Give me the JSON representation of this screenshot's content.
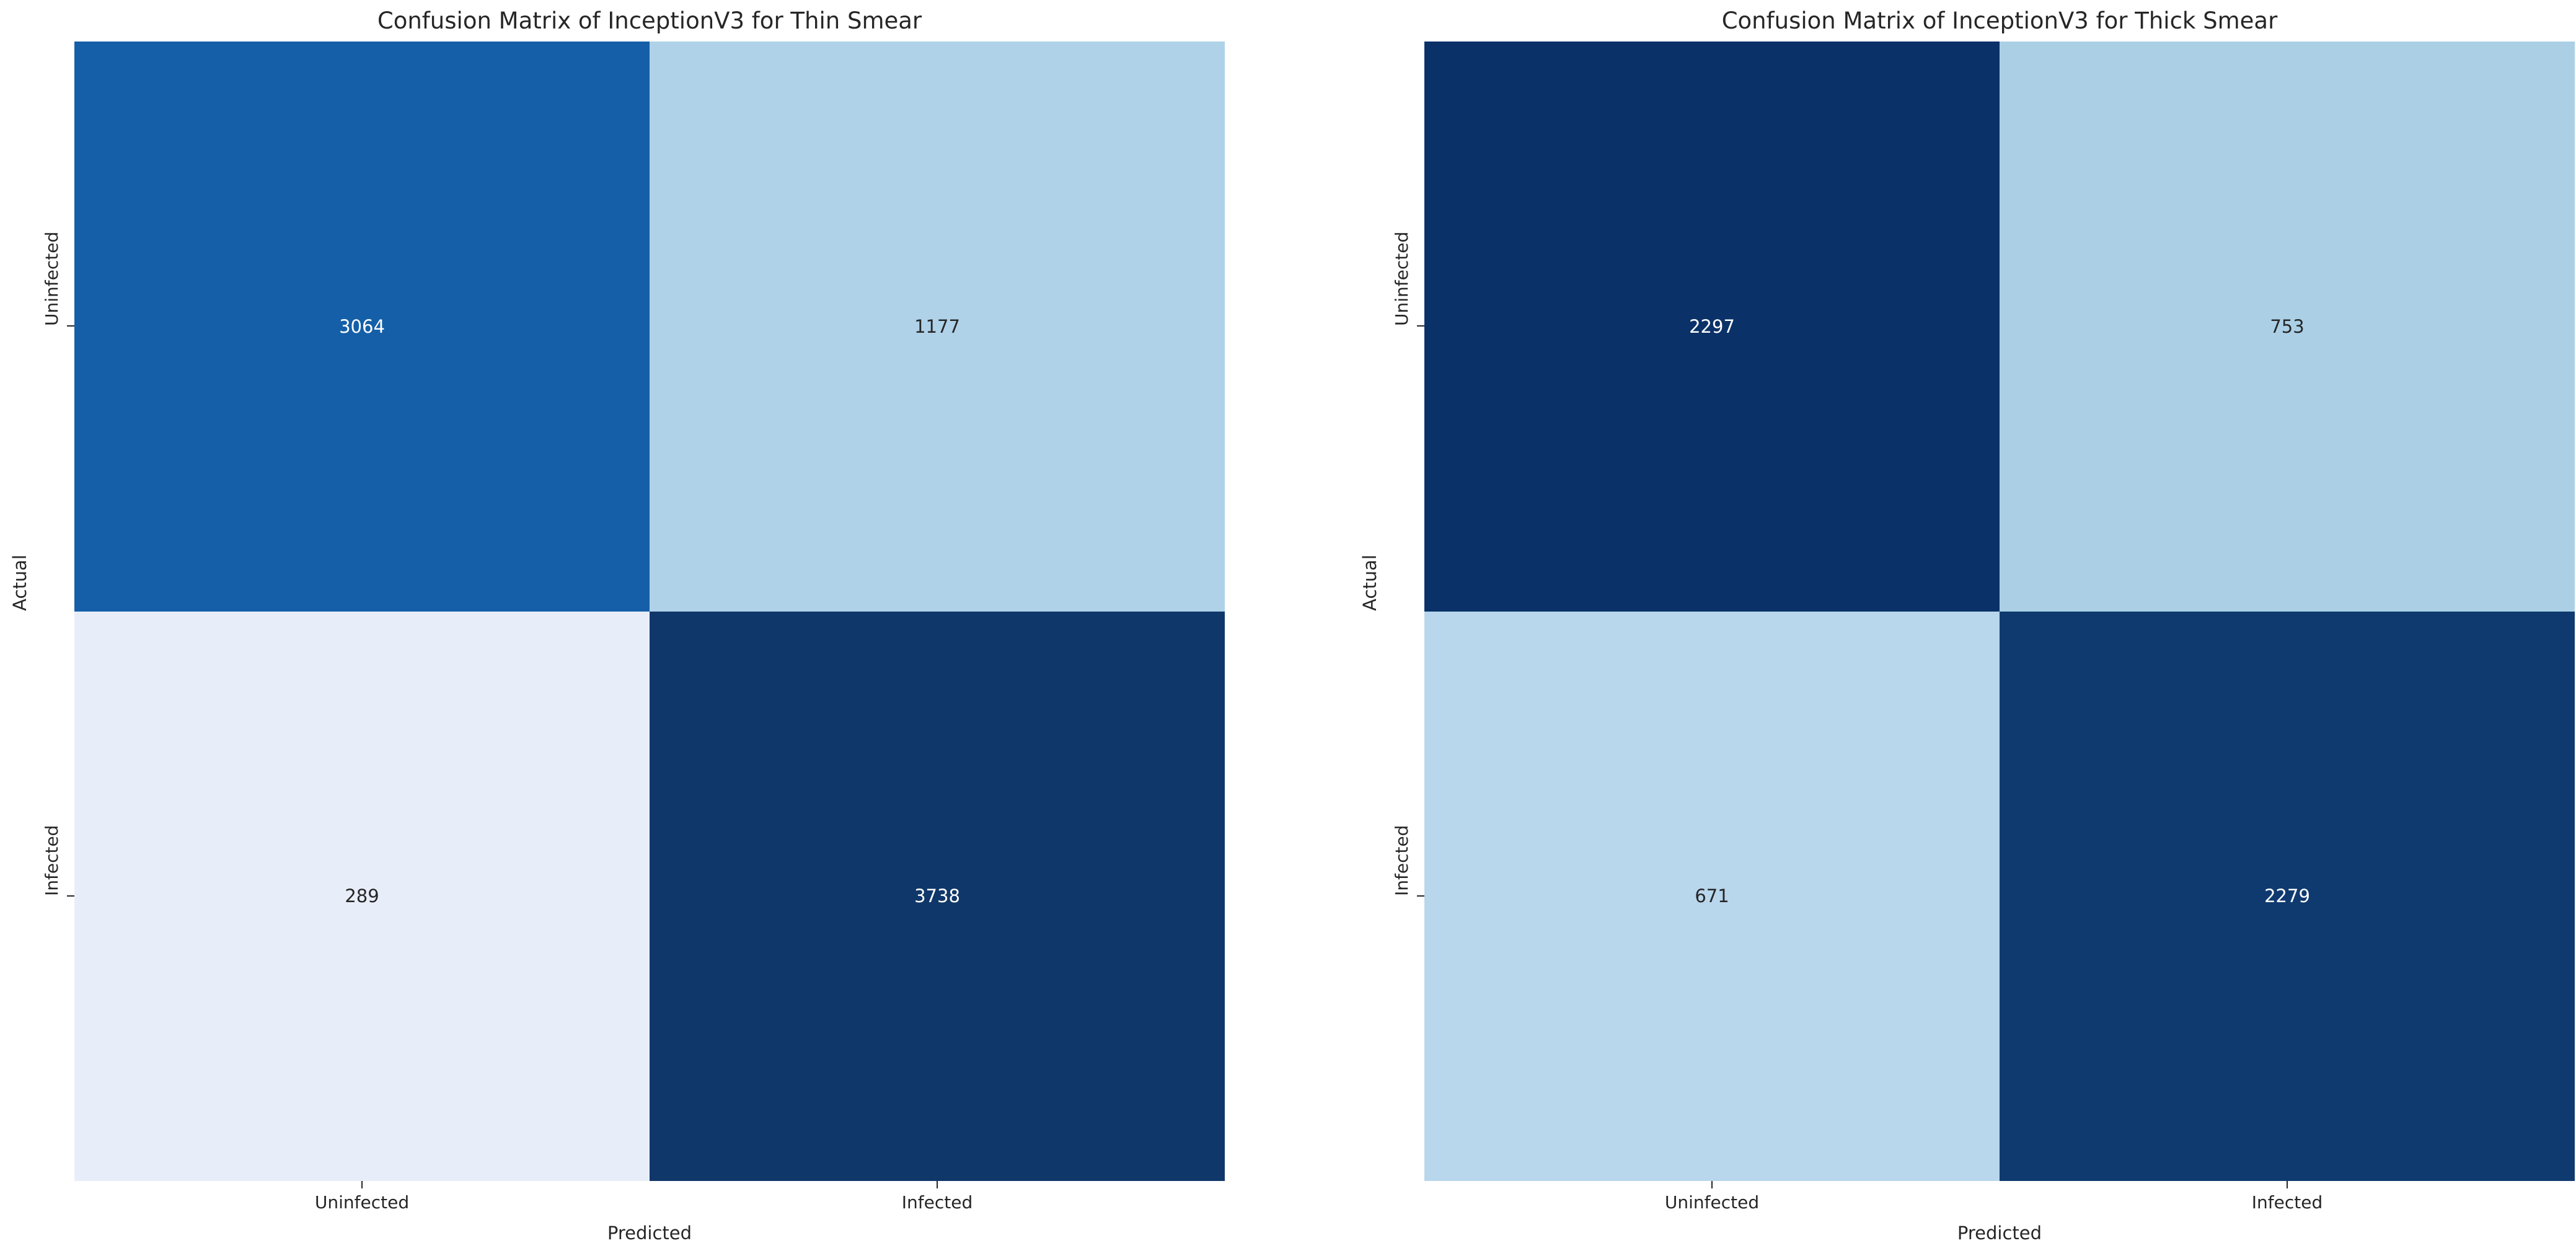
{
  "page": {
    "background": "#ffffff",
    "axis_text_color": "#262626",
    "annotation_light_color": "#ffffff",
    "annotation_dark_color": "#262626"
  },
  "chart_data": [
    {
      "type": "heatmap",
      "title": "Confusion Matrix of InceptionV3 for Thin Smear",
      "xlabel": "Predicted",
      "ylabel": "Actual",
      "x_ticklabels": [
        "Uninfected",
        "Infected"
      ],
      "y_ticklabels": [
        "Uninfected",
        "Infected"
      ],
      "rows": [
        [
          3064,
          1177
        ],
        [
          289,
          3738
        ]
      ],
      "colormap": "Blues",
      "legend": "none",
      "cell_colors": [
        [
          "#155fa8",
          "#afd2e9"
        ],
        [
          "#e8eef9",
          "#103769"
        ]
      ],
      "text_colors": [
        [
          "#ffffff",
          "#262626"
        ],
        [
          "#262626",
          "#ffffff"
        ]
      ]
    },
    {
      "type": "heatmap",
      "title": "Confusion Matrix of InceptionV3 for Thick Smear",
      "xlabel": "Predicted",
      "ylabel": "Actual",
      "x_ticklabels": [
        "Uninfected",
        "Infected"
      ],
      "y_ticklabels": [
        "Uninfected",
        "Infected"
      ],
      "rows": [
        [
          2297,
          753
        ],
        [
          671,
          2279
        ]
      ],
      "colormap": "Blues",
      "legend": "none",
      "cell_colors": [
        [
          "#0a3168",
          "#abd0e6"
        ],
        [
          "#b8d6ec",
          "#0f3a70"
        ]
      ],
      "text_colors": [
        [
          "#ffffff",
          "#262626"
        ],
        [
          "#262626",
          "#ffffff"
        ]
      ]
    }
  ]
}
